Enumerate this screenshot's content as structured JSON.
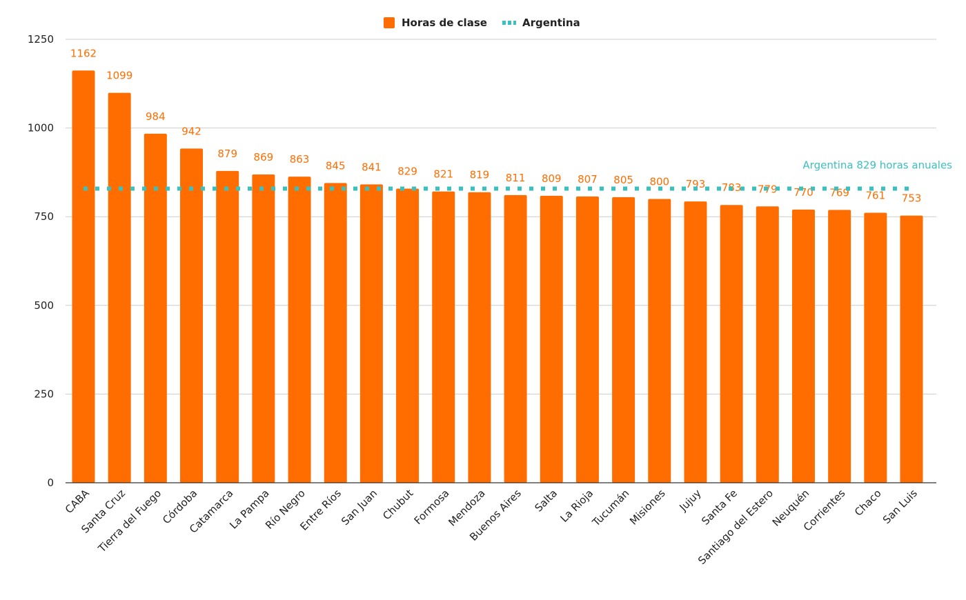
{
  "colors": {
    "bar": "#ff6d00",
    "reference": "#3cbfbf",
    "grid": "#cccccc",
    "axis": "#333333",
    "text": "#222222"
  },
  "legend": {
    "items": [
      {
        "label": "Horas de clase",
        "kind": "bar"
      },
      {
        "label": "Argentina",
        "kind": "dotted-line"
      }
    ],
    "position": "top-center"
  },
  "chart_data": {
    "type": "bar",
    "title": "",
    "xlabel": "",
    "ylabel": "",
    "ylim": [
      0,
      1250
    ],
    "yticks": [
      0,
      250,
      500,
      750,
      1000,
      1250
    ],
    "grid": true,
    "categories": [
      "CABA",
      "Santa Cruz",
      "Tierra del Fuego",
      "Córdoba",
      "Catamarca",
      "La Pampa",
      "Río Negro",
      "Entre Ríos",
      "San Juan",
      "Chubut",
      "Formosa",
      "Mendoza",
      "Buenos Aires",
      "Salta",
      "La Rioja",
      "Tucumán",
      "Misiones",
      "Jujuy",
      "Santa Fe",
      "Santiago del Estero",
      "Neuquén",
      "Corrientes",
      "Chaco",
      "San Luis"
    ],
    "series": [
      {
        "name": "Horas de clase",
        "type": "bar",
        "values": [
          1162,
          1099,
          984,
          942,
          879,
          869,
          863,
          845,
          841,
          829,
          821,
          819,
          811,
          809,
          807,
          805,
          800,
          793,
          783,
          779,
          770,
          769,
          761,
          753
        ]
      },
      {
        "name": "Argentina",
        "type": "line",
        "style": "dotted",
        "value": 829
      }
    ],
    "annotations": [
      {
        "text": "Argentina 829 horas anuales",
        "series": "Argentina"
      }
    ]
  }
}
